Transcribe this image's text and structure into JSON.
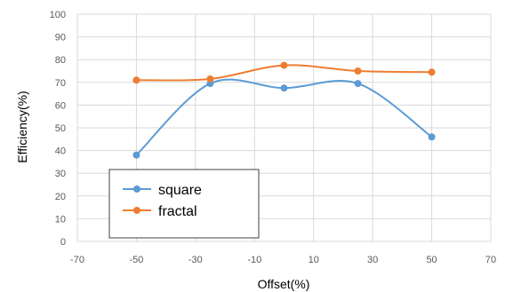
{
  "chart_data": {
    "type": "line",
    "title": "",
    "xlabel": "Offset(%)",
    "ylabel": "Efficiency(%)",
    "xlim": [
      -70,
      70
    ],
    "ylim": [
      0,
      100
    ],
    "xticks": [
      -70,
      -50,
      -30,
      -10,
      10,
      30,
      50,
      70
    ],
    "yticks": [
      0,
      10,
      20,
      30,
      40,
      50,
      60,
      70,
      80,
      90,
      100
    ],
    "grid": true,
    "legend_position": "bottom-left",
    "x": [
      -50,
      -25,
      0,
      25,
      50
    ],
    "series": [
      {
        "name": "square",
        "color": "#5b9bd5",
        "values": [
          38,
          69.5,
          67.5,
          69.5,
          46
        ]
      },
      {
        "name": "fractal",
        "color": "#ed7d31",
        "values": [
          71,
          71.5,
          77.5,
          75,
          74.5
        ]
      }
    ]
  }
}
